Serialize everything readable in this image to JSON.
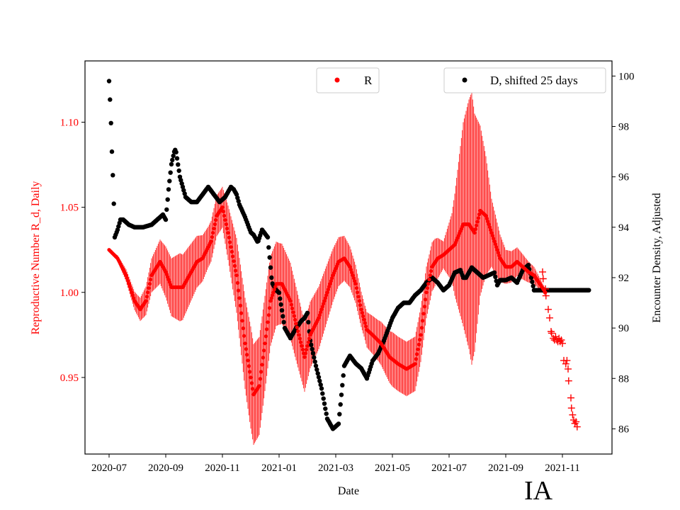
{
  "chart_data": {
    "type": "scatter",
    "title": "",
    "state_tag": "IA",
    "xlabel": "Date",
    "ylabel_left": "Reproductive Number R_d, Daily",
    "ylabel_right": "Encounter Density, Adjusted",
    "x_ticks": [
      "2020-07",
      "2020-09",
      "2020-11",
      "2021-01",
      "2021-03",
      "2021-05",
      "2021-07",
      "2021-09",
      "2021-11"
    ],
    "x_tick_months": [
      0,
      2,
      4,
      6,
      8,
      10,
      12,
      14,
      16
    ],
    "x_range_months": [
      -0.85,
      17.75
    ],
    "y_left": {
      "range": [
        0.905,
        1.136
      ],
      "ticks": [
        0.95,
        1.0,
        1.05,
        1.1
      ],
      "tick_labels": [
        "0.95",
        "1.00",
        "1.05",
        "1.10"
      ]
    },
    "y_right": {
      "range": [
        85.0,
        100.6
      ],
      "ticks": [
        86,
        88,
        90,
        92,
        94,
        96,
        98,
        100
      ],
      "tick_labels": [
        "86",
        "88",
        "90",
        "92",
        "94",
        "96",
        "98",
        "100"
      ]
    },
    "colors": {
      "R": "#ff0000",
      "D": "#000000",
      "left_axis_text": "#ff0000",
      "right_axis_text": "#000000"
    },
    "legend": {
      "R": {
        "label": "R",
        "position": "top-center"
      },
      "D": {
        "label": "D, shifted 25 days",
        "position": "top-right"
      }
    },
    "series": [
      {
        "name": "R",
        "axis": "left",
        "marker": "dot",
        "band": "daily oscillation (vertical lines)",
        "knots_month": [
          0,
          0.3,
          0.6,
          0.9,
          1.1,
          1.3,
          1.5,
          1.8,
          2.0,
          2.2,
          2.6,
          2.9,
          3.1,
          3.3,
          3.6,
          3.8,
          4.0,
          4.2,
          4.5,
          4.8,
          5.1,
          5.3,
          5.5,
          5.7,
          5.9,
          6.1,
          6.4,
          6.7,
          6.9,
          7.1,
          7.4,
          7.6,
          7.9,
          8.1,
          8.3,
          8.5,
          8.7,
          8.9,
          9.1,
          9.3,
          9.6,
          9.9,
          10.2,
          10.5,
          10.8,
          11.0,
          11.2,
          11.4,
          11.6,
          11.8,
          12.0,
          12.2,
          12.5,
          12.7,
          12.9,
          13.1,
          13.3,
          13.5,
          13.8,
          14.0,
          14.2,
          14.4,
          14.6,
          14.8,
          15.0,
          15.2,
          15.4
        ],
        "knots_value": [
          1.025,
          1.02,
          1.01,
          0.995,
          0.99,
          0.995,
          1.01,
          1.018,
          1.012,
          1.003,
          1.003,
          1.012,
          1.018,
          1.02,
          1.03,
          1.045,
          1.05,
          1.035,
          1.01,
          0.97,
          0.94,
          0.945,
          0.97,
          0.995,
          1.005,
          1.005,
          0.995,
          0.975,
          0.962,
          0.975,
          0.985,
          0.995,
          1.01,
          1.018,
          1.02,
          1.015,
          1.005,
          0.99,
          0.978,
          0.975,
          0.97,
          0.962,
          0.958,
          0.955,
          0.958,
          0.975,
          1.0,
          1.015,
          1.02,
          1.022,
          1.025,
          1.028,
          1.04,
          1.04,
          1.035,
          1.048,
          1.045,
          1.035,
          1.02,
          1.015,
          1.015,
          1.018,
          1.015,
          1.012,
          1.01,
          1.005,
          1.0
        ],
        "band_months": [
          0,
          0.5,
          1.0,
          1.5,
          2.0,
          2.5,
          3.0,
          3.5,
          4.0,
          4.5,
          5.0,
          5.5,
          6.0,
          6.5,
          7.0,
          7.5,
          8.0,
          8.5,
          9.0,
          9.5,
          10.0,
          10.5,
          11.0,
          11.5,
          11.8,
          12.1,
          12.5,
          12.8,
          13.1,
          13.5,
          14.0,
          14.5,
          15.0,
          15.4
        ],
        "band_half_width": [
          0,
          0.003,
          0.006,
          0.01,
          0.015,
          0.02,
          0.016,
          0.012,
          0.012,
          0.022,
          0.03,
          0.028,
          0.024,
          0.022,
          0.02,
          0.018,
          0.015,
          0.012,
          0.01,
          0.012,
          0.016,
          0.016,
          0.016,
          0.014,
          0.008,
          0.02,
          0.06,
          0.08,
          0.05,
          0.02,
          0.01,
          0.008,
          0.005,
          0.002
        ],
        "projection": {
          "marker": "plus",
          "points_month": [
            15.3,
            15.32,
            15.4,
            15.42,
            15.5,
            15.55,
            15.6,
            15.62,
            15.68,
            15.72,
            15.76,
            15.8,
            15.84,
            15.88,
            15.92,
            15.96,
            16.0,
            16.05,
            16.12,
            16.16,
            16.2,
            16.22,
            16.3,
            16.32,
            16.36,
            16.4,
            16.44,
            16.48,
            16.52
          ],
          "points_value": [
            1.012,
            1.008,
            1.002,
            0.998,
            0.99,
            0.985,
            0.977,
            0.976,
            0.973,
            0.972,
            0.974,
            0.972,
            0.971,
            0.973,
            0.971,
            0.972,
            0.97,
            0.96,
            0.958,
            0.96,
            0.955,
            0.948,
            0.938,
            0.932,
            0.928,
            0.925,
            0.923,
            0.924,
            0.921
          ]
        }
      },
      {
        "name": "D, shifted 25 days",
        "axis": "right",
        "marker": "dot",
        "knots_month": [
          0.0,
          0.05,
          0.1,
          0.15,
          0.2,
          0.3,
          0.4,
          0.5,
          0.7,
          0.9,
          1.2,
          1.5,
          1.7,
          1.9,
          2.0,
          2.1,
          2.2,
          2.3,
          2.35,
          2.5,
          2.7,
          2.9,
          3.1,
          3.3,
          3.5,
          3.7,
          3.9,
          4.1,
          4.3,
          4.4,
          4.5,
          4.6,
          4.8,
          5.0,
          5.1,
          5.25,
          5.4,
          5.6,
          5.75,
          5.9,
          6.0,
          6.2,
          6.4,
          6.6,
          6.8,
          6.9,
          7.0,
          7.1,
          7.3,
          7.5,
          7.7,
          7.9,
          8.1,
          8.3,
          8.5,
          8.7,
          8.9,
          9.1,
          9.3,
          9.5,
          9.7,
          10.0,
          10.2,
          10.4,
          10.6,
          10.8,
          11.0,
          11.2,
          11.4,
          11.6,
          11.8,
          12.0,
          12.2,
          12.4,
          12.5,
          12.6,
          12.8,
          13.0,
          13.2,
          13.4,
          13.6,
          13.7,
          13.8,
          14.0,
          14.2,
          14.4,
          14.6,
          14.8,
          15.0
        ],
        "knots_value": [
          99.8,
          98.7,
          97.0,
          95.6,
          93.6,
          93.9,
          94.3,
          94.3,
          94.1,
          94.0,
          94.0,
          94.1,
          94.3,
          94.5,
          94.3,
          95.5,
          96.5,
          97.0,
          97.1,
          96.0,
          95.2,
          95.0,
          95.0,
          95.3,
          95.6,
          95.3,
          95.0,
          95.2,
          95.6,
          95.5,
          95.3,
          94.9,
          94.4,
          93.8,
          93.7,
          93.4,
          93.9,
          93.6,
          91.8,
          91.5,
          91.4,
          90.0,
          89.6,
          90.0,
          90.3,
          90.4,
          90.6,
          89.5,
          88.5,
          87.6,
          86.4,
          86.0,
          86.2,
          88.5,
          88.9,
          88.6,
          88.4,
          88.0,
          88.7,
          89.0,
          89.5,
          90.4,
          90.8,
          91.0,
          91.0,
          91.3,
          91.5,
          91.8,
          92.0,
          91.8,
          91.5,
          91.7,
          92.2,
          92.3,
          92.0,
          92.0,
          92.4,
          92.2,
          92.0,
          92.1,
          92.2,
          91.7,
          91.9,
          91.9,
          92.0,
          91.8,
          92.3,
          92.5,
          91.5
        ],
        "projection": {
          "months": [
            15.0,
            16.95
          ],
          "value": 91.5
        }
      }
    ]
  }
}
